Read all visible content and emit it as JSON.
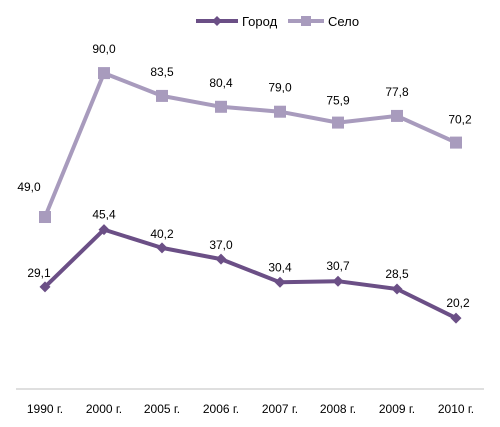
{
  "chart_data": {
    "type": "line",
    "categories": [
      "1990 г.",
      "2000 г.",
      "2005 г.",
      "2006 г.",
      "2007 г.",
      "2008 г.",
      "2009 г.",
      "2010 г."
    ],
    "series": [
      {
        "name": "Город",
        "values": [
          29.1,
          45.4,
          40.2,
          37.0,
          30.4,
          30.7,
          28.5,
          20.2
        ],
        "labels": [
          "29,1",
          "45,4",
          "40,2",
          "37,0",
          "30,4",
          "30,7",
          "28,5",
          "20,2"
        ],
        "color": "#6b4f86",
        "marker": "diamond"
      },
      {
        "name": "Село",
        "values": [
          49.0,
          90.0,
          83.5,
          80.4,
          79.0,
          75.9,
          77.8,
          70.2
        ],
        "labels": [
          "49,0",
          "90,0",
          "83,5",
          "80,4",
          "79,0",
          "75,9",
          "77,8",
          "70,2"
        ],
        "color": "#a89bbd",
        "marker": "square"
      }
    ],
    "ylim": [
      0,
      100
    ],
    "grid": false,
    "legend": "top-center"
  }
}
